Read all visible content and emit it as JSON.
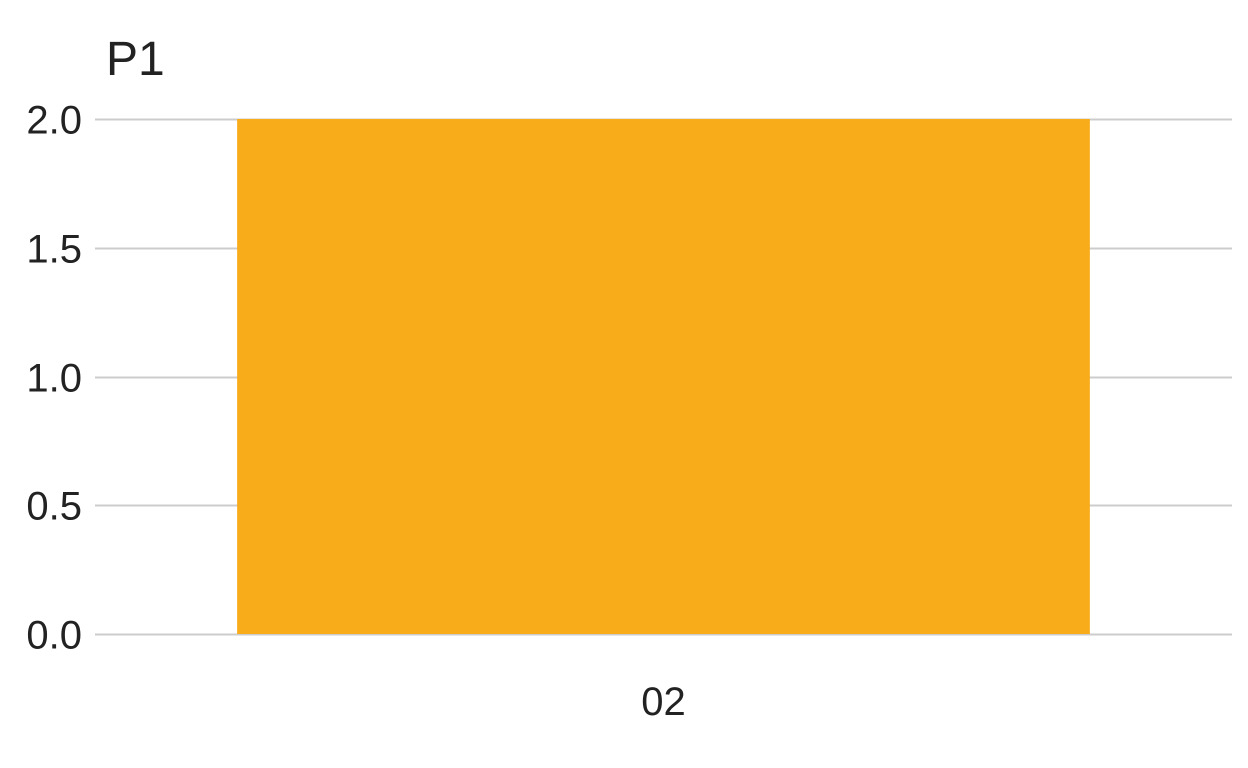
{
  "chart_data": {
    "type": "bar",
    "title": "P1",
    "xlabel": "",
    "ylabel": "",
    "categories": [
      "02"
    ],
    "values": [
      2.0
    ],
    "ylim": [
      0,
      2.0
    ],
    "yticks": [
      "0.0",
      "0.5",
      "1.0",
      "1.5",
      "2.0"
    ],
    "grid": true,
    "legend": "none",
    "bar_color": "#f9ac1a"
  }
}
